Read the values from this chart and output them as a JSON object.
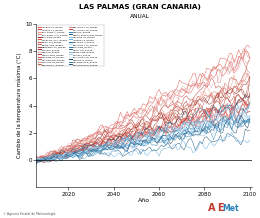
{
  "title": "LAS PALMAS (GRAN CANARIA)",
  "subtitle": "ANUAL",
  "xlabel": "Año",
  "ylabel": "Cambio de la temperatura máxima (°C)",
  "xlim": [
    2006,
    2101
  ],
  "ylim": [
    -2,
    10
  ],
  "yticks": [
    0,
    2,
    4,
    6,
    8,
    10
  ],
  "xticks": [
    2020,
    2040,
    2060,
    2080,
    2100
  ],
  "start_year": 2006,
  "end_year": 2100,
  "n_red_lines": 22,
  "n_blue_lines": 18,
  "red_colors": [
    "#c0392b",
    "#d9534f",
    "#e05555",
    "#cc3333",
    "#b03a2e",
    "#e74c3c",
    "#f1948a",
    "#cd6155",
    "#a93226",
    "#d98880",
    "#e8b4b8",
    "#c0392b"
  ],
  "blue_colors": [
    "#1a5276",
    "#2471a3",
    "#2980b9",
    "#5dade2",
    "#85c1e9",
    "#aed6f1",
    "#1f618d",
    "#2e86c1",
    "#7fb3d3",
    "#a9cce3",
    "#d6eaf8",
    "#154360"
  ],
  "bg_color": "#ffffff",
  "footer_text": "© Agencia Estatal de Meteorología",
  "legend_items_left": [
    "ACCESS1.0_RCP85",
    "ACCESS1.3_RCP85",
    "BCC-CSM1.1_RCP85",
    "BCC-CSM1.1-M_RCP85",
    "BNU-ESM_RCP85",
    "CanESM2_CCA_RCP85",
    "CMCC-CM_RCP85",
    "CNRM-CM5_RCP85",
    "HadGEM2-CC_RCP85",
    "inmcm4_RCP85",
    "MIROC5_RCP85",
    "MIROC-ESM_RCP85",
    "MPI-ESM-LR_RCP85",
    "MPI-ESM-MR_RCP85",
    "MRI-CGCM3_RCP85",
    "Bcc-csm1.1_RCP85",
    "Bcc-csm1.1-m_RCP85",
    "IPSL-CM5A-LR_RCP85"
  ],
  "legend_items_right": [
    "MIROC5_RCP45",
    "MIROC-ESM-CHEM_RCP45",
    "MPI-ESM-LR_RCP45",
    "ACCESS1.0_RCP45",
    "Bcc-csm1.1_RCP45",
    "Bcc-csm1.1-m_RCP45",
    "BNU-ESM_RCP45",
    "CMCC-CM_RCP45",
    "CNRM-CM5_RCP45",
    "inmcm4_RCP45",
    "IPSL-CM5A-LR_RCP45",
    "MIROC5.2_RCP45",
    "MPI-ESM-LR.R_RCP45",
    "MRI-CGCM3.R_RCP45"
  ]
}
